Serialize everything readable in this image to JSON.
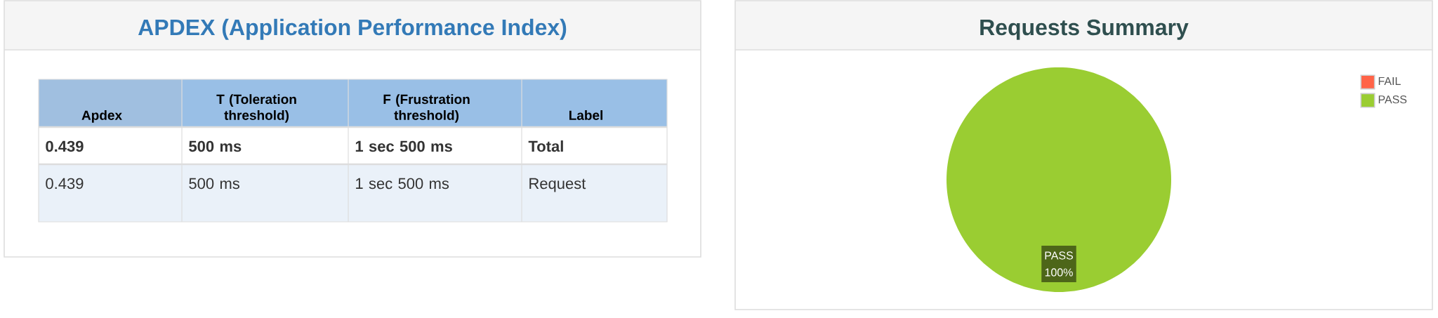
{
  "chart_data": [
    {
      "type": "other",
      "title": "APDEX (Application Performance Index)",
      "categories": [
        "Apdex",
        "T (Toleration threshold)",
        "F (Frustration threshold)",
        "Label"
      ],
      "annotations": [
        "0.439",
        "500 ms",
        "1 sec 500 ms",
        "Total",
        "0.439",
        "500 ms",
        "1 sec 500 ms",
        "Request"
      ]
    },
    {
      "type": "pie",
      "title": "Requests Summary",
      "categories": [
        "FAIL",
        "PASS"
      ],
      "values": [
        0,
        100
      ],
      "colors": [
        "#ff6347",
        "#9acd32"
      ],
      "value_labels": [
        null,
        "100%"
      ],
      "legend": "top right"
    }
  ]
}
